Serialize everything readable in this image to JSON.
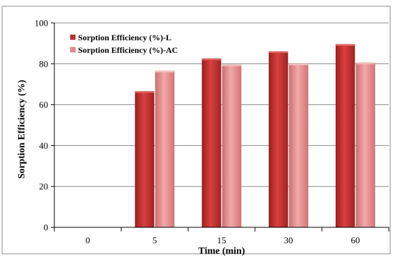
{
  "chart_data": {
    "type": "bar",
    "categories": [
      "0",
      "5",
      "15",
      "30",
      "60"
    ],
    "series": [
      {
        "name": "Sorption Efficiency (%)-L",
        "values": [
          0,
          66.5,
          82.5,
          86,
          89.5
        ],
        "color": "#c0302f"
      },
      {
        "name": "Sorption Efficiency (%)-AC",
        "values": [
          0,
          76.5,
          79.5,
          80,
          80.5
        ],
        "color": "#e58a8a"
      }
    ],
    "xlabel": "Time (min)",
    "ylabel": "Sorption Efficiency (%)",
    "ylim": [
      0,
      100
    ],
    "yticks": [
      "0",
      "20",
      "40",
      "60",
      "80",
      "100"
    ],
    "grid": true,
    "legend_position": "top-left"
  }
}
